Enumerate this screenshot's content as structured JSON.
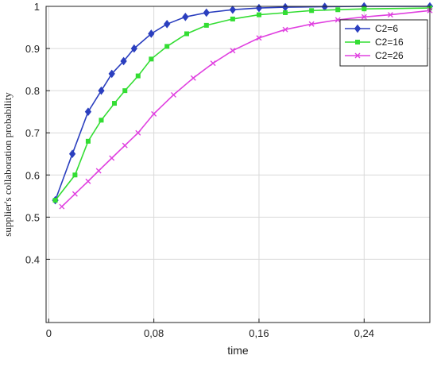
{
  "chart_data": {
    "type": "line",
    "title": "",
    "xlabel": "time",
    "ylabel": "supplier's collaboration probability",
    "xlim": [
      -0.002,
      0.29
    ],
    "ylim": [
      0.25,
      1.0
    ],
    "xticks": [
      0,
      0.08,
      0.16,
      0.24
    ],
    "xtick_labels": [
      "0",
      "0,08",
      "0,16",
      "0,24"
    ],
    "yticks": [
      0.4,
      0.5,
      0.6,
      0.7,
      0.8,
      0.9,
      1.0
    ],
    "ytick_labels": [
      "0.4",
      "0.5",
      "0.6",
      "0.7",
      "0.8",
      "0.9",
      "1"
    ],
    "grid": true,
    "legend_position": "top-right",
    "series": [
      {
        "name": "C2=6",
        "color": "#2b3fbf",
        "marker": "diamond",
        "x": [
          0.005,
          0.018,
          0.03,
          0.04,
          0.048,
          0.057,
          0.065,
          0.078,
          0.09,
          0.104,
          0.12,
          0.14,
          0.16,
          0.18,
          0.21,
          0.24,
          0.29
        ],
        "y": [
          0.54,
          0.65,
          0.75,
          0.8,
          0.84,
          0.87,
          0.9,
          0.935,
          0.958,
          0.975,
          0.985,
          0.992,
          0.996,
          0.998,
          0.999,
          1.0,
          1.0
        ]
      },
      {
        "name": "C2=16",
        "color": "#33dd33",
        "marker": "square",
        "x": [
          0.005,
          0.02,
          0.03,
          0.04,
          0.05,
          0.058,
          0.068,
          0.078,
          0.09,
          0.105,
          0.12,
          0.14,
          0.16,
          0.18,
          0.2,
          0.22,
          0.24,
          0.29
        ],
        "y": [
          0.54,
          0.6,
          0.68,
          0.73,
          0.77,
          0.8,
          0.835,
          0.875,
          0.905,
          0.935,
          0.955,
          0.97,
          0.98,
          0.985,
          0.99,
          0.992,
          0.994,
          0.996
        ]
      },
      {
        "name": "C2=26",
        "color": "#e040e0",
        "marker": "x",
        "x": [
          0.01,
          0.02,
          0.03,
          0.038,
          0.048,
          0.058,
          0.068,
          0.08,
          0.095,
          0.11,
          0.125,
          0.14,
          0.16,
          0.18,
          0.2,
          0.22,
          0.24,
          0.26,
          0.29
        ],
        "y": [
          0.525,
          0.555,
          0.585,
          0.61,
          0.64,
          0.67,
          0.7,
          0.745,
          0.79,
          0.83,
          0.865,
          0.895,
          0.925,
          0.945,
          0.958,
          0.968,
          0.975,
          0.98,
          0.99
        ]
      }
    ]
  }
}
